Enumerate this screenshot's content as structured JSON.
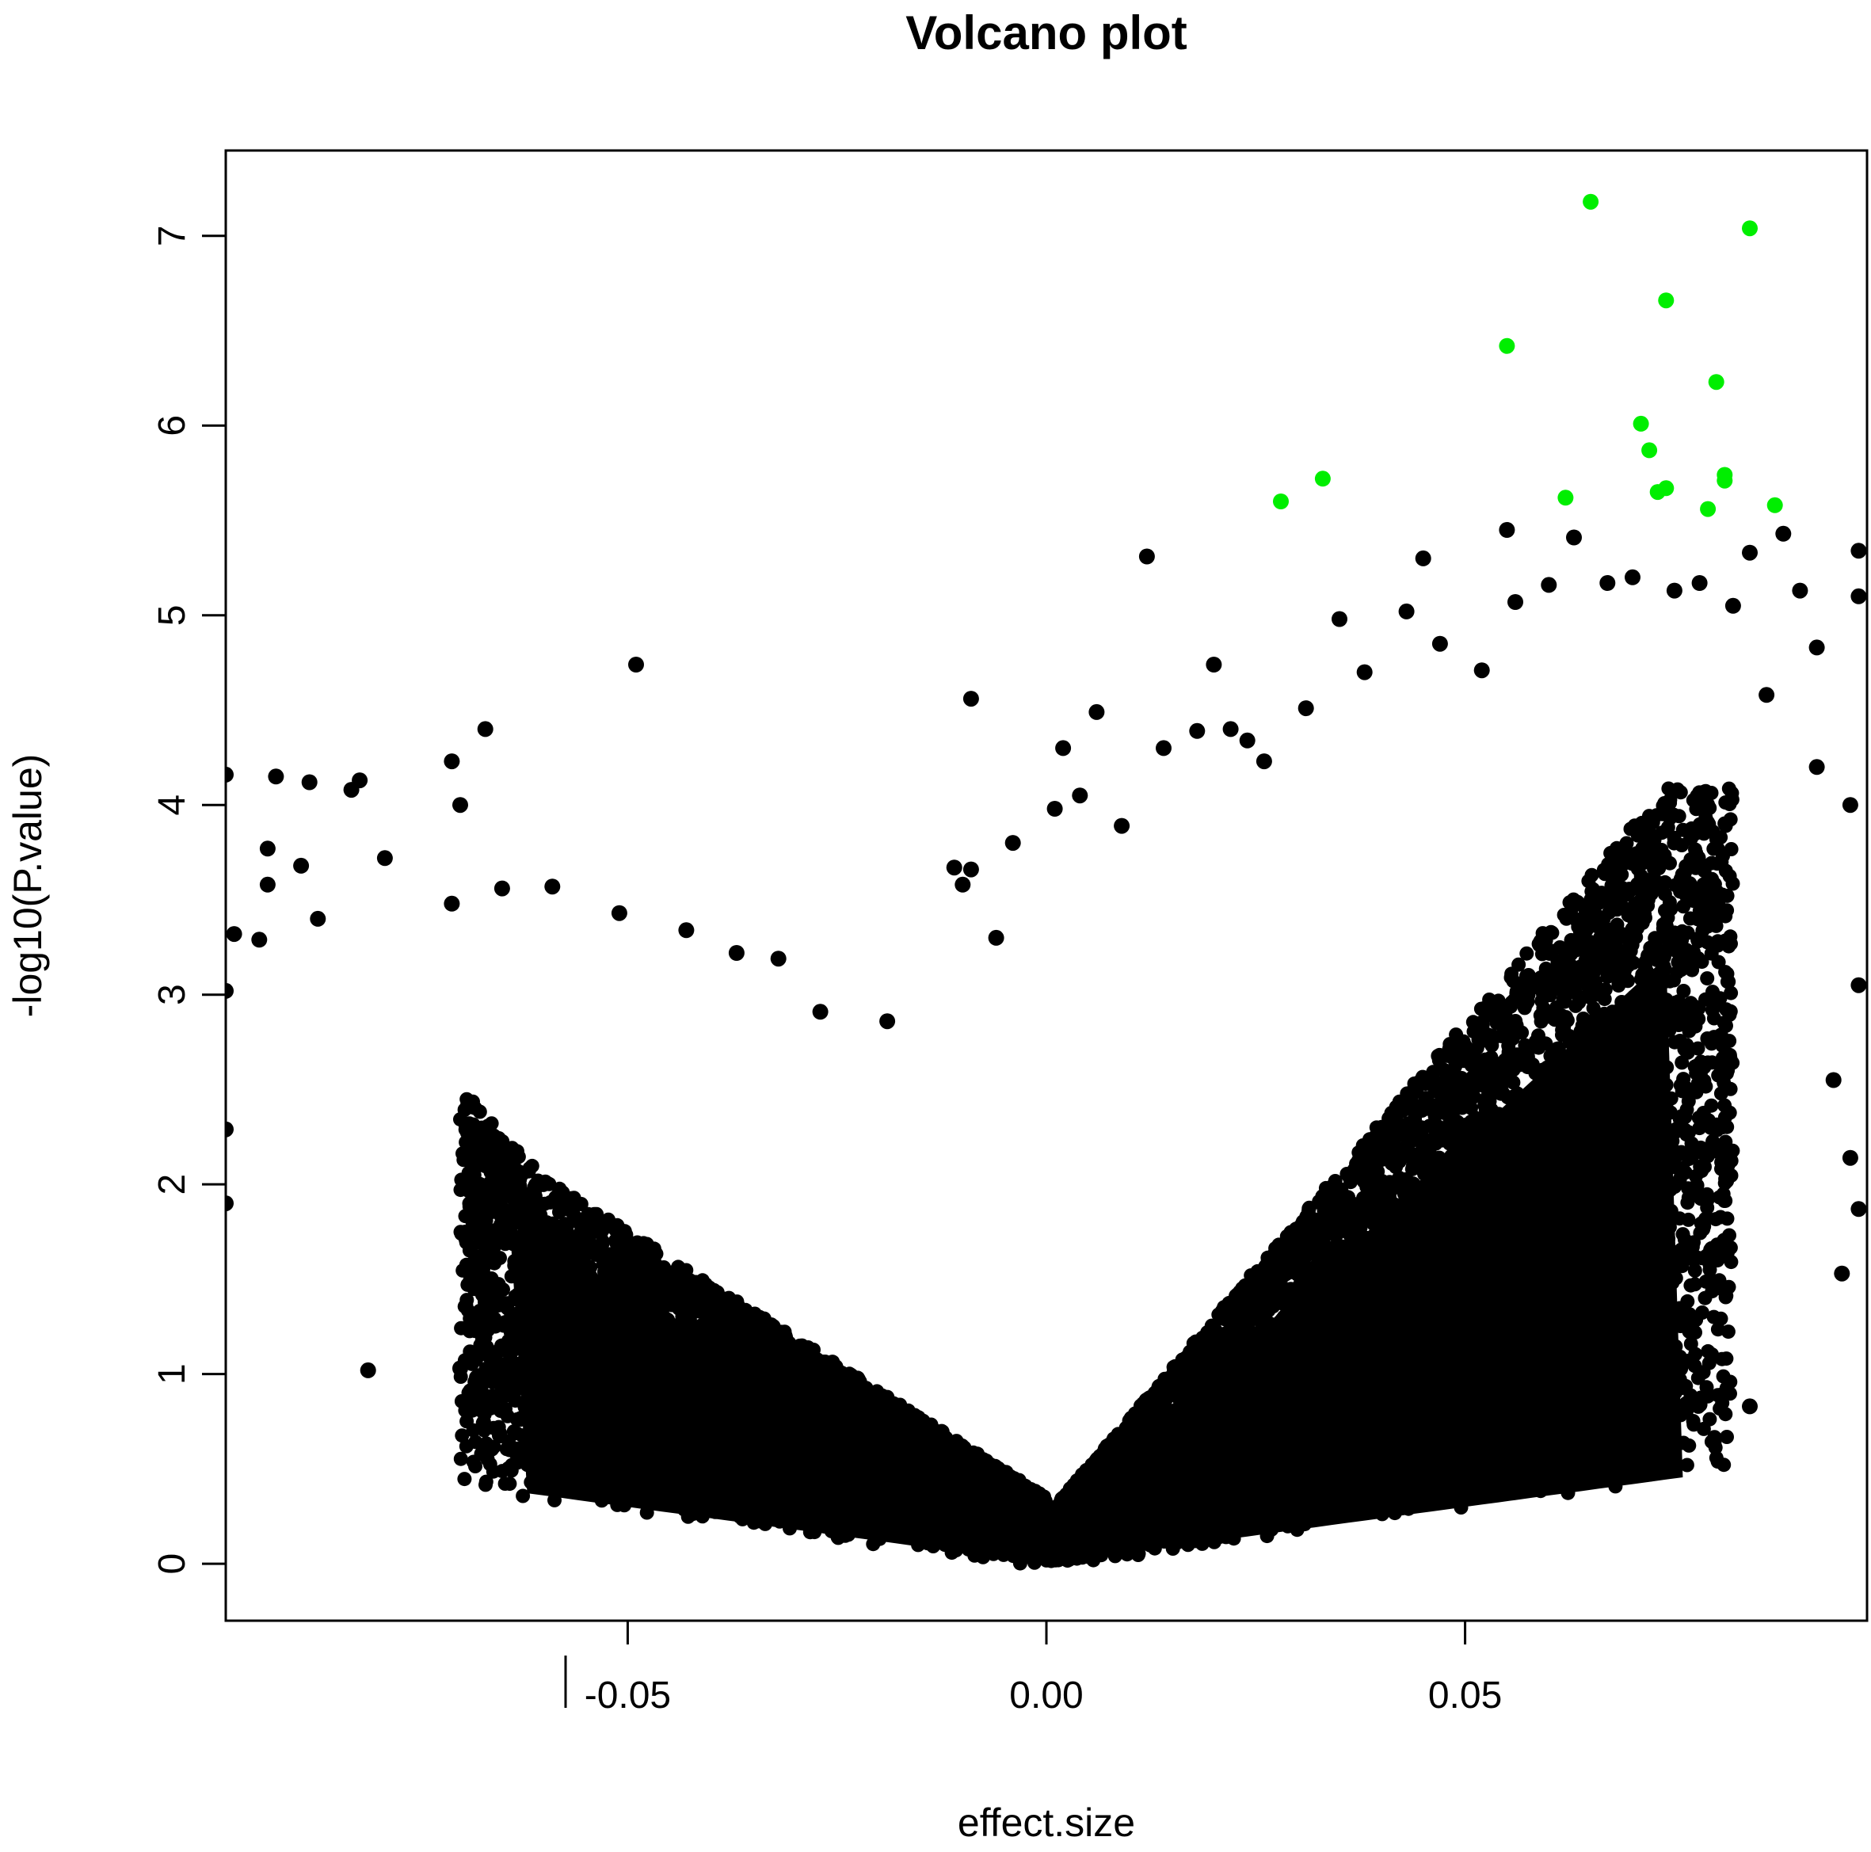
{
  "chart_data": {
    "type": "scatter",
    "title": "Volcano plot",
    "xlabel": "effect.size",
    "ylabel": "-log10(P.value)",
    "xlim": [
      -0.098,
      0.098
    ],
    "ylim": [
      -0.3,
      7.45
    ],
    "x_ticks": [
      -0.05,
      0.0,
      0.05
    ],
    "x_tick_labels": [
      "-0.05",
      "0.00",
      "0.05"
    ],
    "y_ticks": [
      0,
      1,
      2,
      3,
      4,
      5,
      6,
      7
    ],
    "y_tick_labels": [
      "0",
      "1",
      "2",
      "3",
      "4",
      "5",
      "6",
      "7"
    ],
    "grid": false,
    "colors": {
      "points": "#000000",
      "significant": "#00ee00"
    },
    "series": [
      {
        "color": "#00ee00",
        "points": [
          [
            0.065,
            7.18
          ],
          [
            0.084,
            7.04
          ],
          [
            0.074,
            6.66
          ],
          [
            0.055,
            6.42
          ],
          [
            0.08,
            6.23
          ],
          [
            0.071,
            6.01
          ],
          [
            0.072,
            5.87
          ],
          [
            0.081,
            5.74
          ],
          [
            0.033,
            5.72
          ],
          [
            0.081,
            5.71
          ],
          [
            0.074,
            5.67
          ],
          [
            0.073,
            5.65
          ],
          [
            0.062,
            5.62
          ],
          [
            0.028,
            5.6
          ],
          [
            0.087,
            5.58
          ],
          [
            0.079,
            5.56
          ]
        ]
      },
      {
        "color": "#000000",
        "points": [
          [
            -0.049,
            4.74
          ],
          [
            -0.009,
            4.56
          ],
          [
            0.012,
            5.31
          ],
          [
            -0.067,
            4.4
          ],
          [
            -0.07,
            4.0
          ],
          [
            -0.071,
            4.23
          ],
          [
            -0.098,
            4.16
          ],
          [
            -0.092,
            4.15
          ],
          [
            -0.088,
            4.12
          ],
          [
            -0.082,
            4.13
          ],
          [
            -0.083,
            4.08
          ],
          [
            -0.093,
            3.77
          ],
          [
            0.006,
            4.49
          ],
          [
            0.002,
            4.3
          ],
          [
            0.02,
            4.74
          ],
          [
            0.045,
            5.3
          ],
          [
            0.055,
            5.45
          ],
          [
            0.063,
            5.41
          ],
          [
            0.084,
            5.33
          ],
          [
            0.097,
            5.34
          ],
          [
            0.097,
            5.1
          ],
          [
            0.088,
            5.43
          ],
          [
            0.09,
            5.13
          ],
          [
            0.092,
            4.83
          ],
          [
            0.092,
            4.2
          ],
          [
            0.096,
            4.0
          ],
          [
            0.097,
            3.05
          ],
          [
            0.094,
            2.55
          ],
          [
            0.096,
            2.14
          ],
          [
            0.097,
            1.87
          ],
          [
            0.095,
            1.53
          ],
          [
            0.084,
            0.83
          ],
          [
            0.074,
            0.86
          ],
          [
            0.078,
            0.84
          ],
          [
            0.066,
            0.83
          ],
          [
            0.059,
            0.61
          ],
          [
            0.052,
            0.6
          ],
          [
            0.049,
            0.47
          ],
          [
            0.046,
            0.41
          ],
          [
            -0.044,
            0.32
          ],
          [
            -0.042,
            0.34
          ],
          [
            -0.047,
            0.56
          ],
          [
            -0.059,
            0.82
          ],
          [
            -0.065,
            0.91
          ],
          [
            -0.081,
            1.02
          ],
          [
            -0.07,
            1.03
          ],
          [
            -0.067,
            1.0
          ],
          [
            -0.098,
            1.9
          ],
          [
            -0.098,
            2.29
          ],
          [
            -0.098,
            3.02
          ],
          [
            -0.097,
            3.32
          ],
          [
            -0.094,
            3.29
          ],
          [
            -0.093,
            3.58
          ],
          [
            -0.089,
            3.68
          ],
          [
            -0.087,
            3.4
          ],
          [
            -0.079,
            3.72
          ],
          [
            -0.071,
            3.48
          ],
          [
            -0.065,
            3.56
          ],
          [
            -0.059,
            3.57
          ],
          [
            -0.051,
            3.43
          ],
          [
            -0.043,
            3.34
          ],
          [
            -0.037,
            3.22
          ],
          [
            -0.032,
            3.19
          ],
          [
            -0.027,
            2.91
          ],
          [
            -0.019,
            2.86
          ],
          [
            -0.011,
            3.67
          ],
          [
            -0.01,
            3.58
          ],
          [
            -0.009,
            3.66
          ],
          [
            -0.004,
            3.8
          ],
          [
            -0.006,
            3.3
          ],
          [
            0.001,
            3.98
          ],
          [
            0.004,
            4.05
          ],
          [
            0.009,
            3.89
          ],
          [
            0.014,
            4.3
          ],
          [
            0.018,
            4.39
          ],
          [
            0.022,
            4.4
          ],
          [
            0.024,
            4.34
          ],
          [
            0.026,
            4.23
          ],
          [
            0.031,
            4.51
          ],
          [
            0.035,
            4.98
          ],
          [
            0.038,
            4.7
          ],
          [
            0.043,
            5.02
          ],
          [
            0.047,
            4.85
          ],
          [
            0.052,
            4.71
          ],
          [
            0.056,
            5.07
          ],
          [
            0.06,
            5.16
          ],
          [
            0.067,
            5.17
          ],
          [
            0.07,
            5.2
          ],
          [
            0.075,
            5.13
          ],
          [
            0.078,
            5.17
          ],
          [
            0.082,
            5.05
          ],
          [
            0.086,
            4.58
          ]
        ]
      }
    ]
  }
}
